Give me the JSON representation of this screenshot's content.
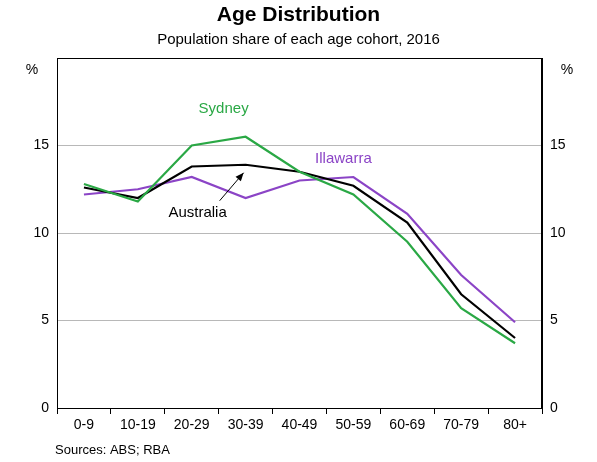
{
  "chart_data": {
    "type": "line",
    "title": "Age Distribution",
    "subtitle": "Population share of each age cohort, 2016",
    "ylabel": "%",
    "y2label": "%",
    "source": "Sources: ABS; RBA",
    "categories": [
      "0-9",
      "10-19",
      "20-29",
      "30-39",
      "40-49",
      "50-59",
      "60-69",
      "70-79",
      "80+"
    ],
    "series": [
      {
        "name": "Sydney",
        "color": "#2aa845",
        "values": [
          12.8,
          11.8,
          15.0,
          15.5,
          13.5,
          12.2,
          9.5,
          5.7,
          3.7
        ]
      },
      {
        "name": "Australia",
        "color": "#000000",
        "values": [
          12.6,
          12.0,
          13.8,
          13.9,
          13.5,
          12.7,
          10.6,
          6.5,
          4.0
        ]
      },
      {
        "name": "Illawarra",
        "color": "#8b44c6",
        "values": [
          12.2,
          12.5,
          13.2,
          12.0,
          13.0,
          13.2,
          11.1,
          7.6,
          4.9
        ]
      }
    ],
    "ylim": [
      0,
      20
    ],
    "yticks": [
      0,
      5,
      10,
      15
    ],
    "y2lim": [
      0,
      20
    ],
    "y2ticks": [
      0,
      5,
      10,
      15
    ],
    "grid": true
  }
}
